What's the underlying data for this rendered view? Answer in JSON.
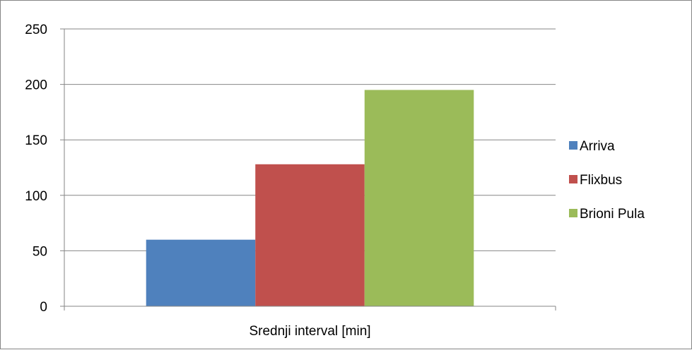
{
  "chart_data": {
    "type": "bar",
    "categories": [
      "Srednji interval [min]"
    ],
    "series": [
      {
        "name": "Arriva",
        "values": [
          60
        ],
        "color": "#4F81BD"
      },
      {
        "name": "Flixbus",
        "values": [
          128
        ],
        "color": "#C0504D"
      },
      {
        "name": "Brioni Pula",
        "values": [
          195
        ],
        "color": "#9BBB59"
      }
    ],
    "xlabel": "Srednji interval [min]",
    "ylabel": "",
    "ylim": [
      0,
      250
    ],
    "yticks": [
      0,
      50,
      100,
      150,
      200,
      250
    ],
    "grid": true,
    "legend": "right"
  }
}
